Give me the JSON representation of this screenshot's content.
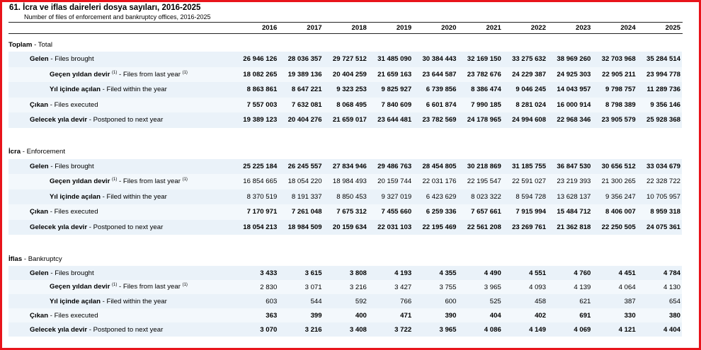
{
  "title": "61. İcra ve iflas daireleri dosya sayıları, 2016-2025",
  "subtitle": "Number of files of enforcement and bankruptcy offices, 2016-2025",
  "years": [
    "2016",
    "2017",
    "2018",
    "2019",
    "2020",
    "2021",
    "2022",
    "2023",
    "2024",
    "2025"
  ],
  "sections": [
    {
      "tr": "Toplam",
      "en": "Total",
      "rows": [
        {
          "level": 1,
          "tr": "Gelen",
          "en": "Files brought",
          "bold": true,
          "values": [
            "26 946 126",
            "28 036 357",
            "29 727 512",
            "31 485 090",
            "30 384 443",
            "32 169 150",
            "33 275 632",
            "38 969 260",
            "32 703 968",
            "35 284 514"
          ]
        },
        {
          "level": 2,
          "tr": "Geçen yıldan devir",
          "sup": "(1)",
          "en": "Files from last year",
          "en_sup": "(1)",
          "bold": true,
          "values": [
            "18 082 265",
            "19 389 136",
            "20 404 259",
            "21 659 163",
            "23 644 587",
            "23 782 676",
            "24 229 387",
            "24 925 303",
            "22 905 211",
            "23 994 778"
          ]
        },
        {
          "level": 2,
          "tr": "Yıl içinde açılan",
          "en": "Filed within the year",
          "bold": true,
          "values": [
            "8 863 861",
            "8 647 221",
            "9 323 253",
            "9 825 927",
            "6 739 856",
            "8 386 474",
            "9 046 245",
            "14 043 957",
            "9 798 757",
            "11 289 736"
          ]
        },
        {
          "level": 1,
          "tr": "Çıkan",
          "en": "Files executed",
          "bold": true,
          "values": [
            "7 557 003",
            "7 632 081",
            "8 068 495",
            "7 840 609",
            "6 601 874",
            "7 990 185",
            "8 281 024",
            "16 000 914",
            "8 798 389",
            "9 356 146"
          ]
        },
        {
          "level": 1,
          "tr": "Gelecek yıla devir",
          "en": "Postponed to next year",
          "bold": true,
          "values": [
            "19 389 123",
            "20 404 276",
            "21 659 017",
            "23 644 481",
            "23 782 569",
            "24 178 965",
            "24 994 608",
            "22 968 346",
            "23 905 579",
            "25 928 368"
          ]
        }
      ]
    },
    {
      "tr": "İcra",
      "en": "Enforcement",
      "rows": [
        {
          "level": 1,
          "tr": "Gelen",
          "en": "Files brought",
          "bold": true,
          "values": [
            "25 225 184",
            "26 245 557",
            "27 834 946",
            "29 486 763",
            "28 454 805",
            "30 218 869",
            "31 185 755",
            "36 847 530",
            "30 656 512",
            "33 034 679"
          ]
        },
        {
          "level": 2,
          "tr": "Geçen yıldan devir",
          "sup": "(1)",
          "en": "Files from last year",
          "en_sup": "(1)",
          "bold": false,
          "values": [
            "16 854 665",
            "18 054 220",
            "18 984 493",
            "20 159 744",
            "22 031 176",
            "22 195 547",
            "22 591 027",
            "23 219 393",
            "21 300 265",
            "22 328 722"
          ]
        },
        {
          "level": 2,
          "tr": "Yıl içinde açılan",
          "en": "Filed within the year",
          "bold": false,
          "values": [
            "8 370 519",
            "8 191 337",
            "8 850 453",
            "9 327 019",
            "6 423 629",
            "8 023 322",
            "8 594 728",
            "13 628 137",
            "9 356 247",
            "10 705 957"
          ]
        },
        {
          "level": 1,
          "tr": "Çıkan",
          "en": "Files executed",
          "bold": true,
          "values": [
            "7 170 971",
            "7 261 048",
            "7 675 312",
            "7 455 660",
            "6 259 336",
            "7 657 661",
            "7 915 994",
            "15 484 712",
            "8 406 007",
            "8 959 318"
          ]
        },
        {
          "level": 1,
          "tr": "Gelecek yıla devir",
          "en": "Postponed to next year",
          "bold": true,
          "values": [
            "18 054 213",
            "18 984 509",
            "20 159 634",
            "22 031 103",
            "22 195 469",
            "22 561 208",
            "23 269 761",
            "21 362 818",
            "22 250 505",
            "24 075 361"
          ]
        }
      ]
    },
    {
      "tr": "İflas",
      "en": "Bankruptcy",
      "rows": [
        {
          "level": 1,
          "tr": "Gelen",
          "en": "Files brought",
          "bold": true,
          "values": [
            "3 433",
            "3 615",
            "3 808",
            "4 193",
            "4 355",
            "4 490",
            "4 551",
            "4 760",
            "4 451",
            "4 784"
          ]
        },
        {
          "level": 2,
          "tr": "Geçen yıldan devir",
          "sup": "(1)",
          "en": "Files from last year",
          "en_sup": "(1)",
          "bold": false,
          "values": [
            "2 830",
            "3 071",
            "3 216",
            "3 427",
            "3 755",
            "3 965",
            "4 093",
            "4 139",
            "4 064",
            "4 130"
          ]
        },
        {
          "level": 2,
          "tr": "Yıl içinde açılan",
          "en": "Filed within the year",
          "bold": false,
          "values": [
            "603",
            "544",
            "592",
            "766",
            "600",
            "525",
            "458",
            "621",
            "387",
            "654"
          ]
        },
        {
          "level": 1,
          "tr": "Çıkan",
          "en": "Files executed",
          "bold": true,
          "values": [
            "363",
            "399",
            "400",
            "471",
            "390",
            "404",
            "402",
            "691",
            "330",
            "380"
          ]
        },
        {
          "level": 1,
          "tr": "Gelecek yıla devir",
          "en": "Postponed to next year",
          "bold": true,
          "values": [
            "3 070",
            "3 216",
            "3 408",
            "3 722",
            "3 965",
            "4 086",
            "4 149",
            "4 069",
            "4 121",
            "4 404"
          ]
        }
      ]
    }
  ]
}
